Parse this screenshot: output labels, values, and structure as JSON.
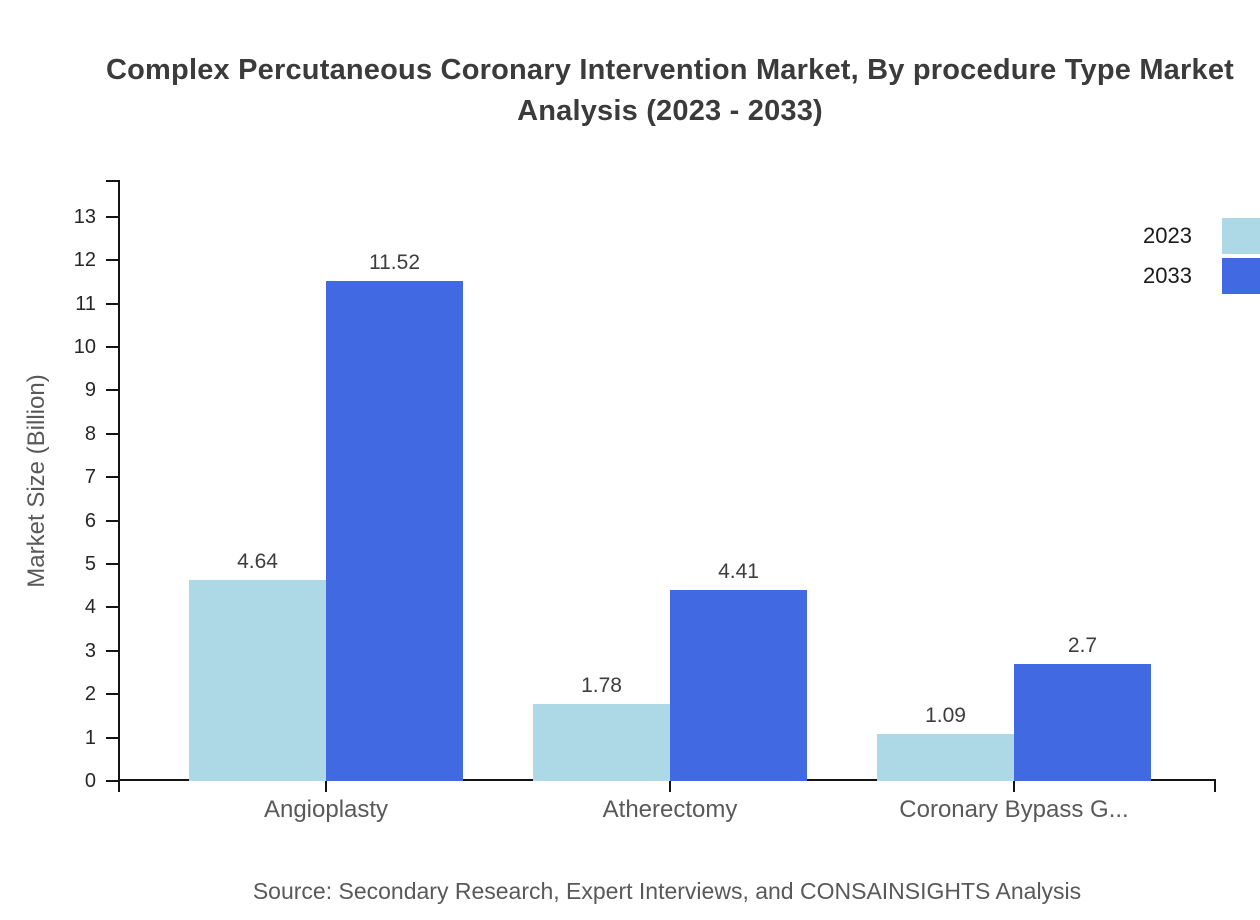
{
  "title": "Complex Percutaneous Coronary Intervention Market, By procedure Type Market Analysis (2023 - 2033)",
  "source_note": "Source: Secondary Research, Expert Interviews, and CONSAINSIGHTS Analysis",
  "colors": {
    "series_2023": "#ADD8E6",
    "series_2033": "#4169E1",
    "axis": "#141414",
    "title_text": "#3b3b3b",
    "muted_text": "#595959",
    "tick_text": "#262626",
    "background": "#ffffff"
  },
  "chart_data": {
    "type": "bar",
    "title": "Complex Percutaneous Coronary Intervention Market, By procedure Type Market Analysis (2023 - 2033)",
    "categories": [
      "Angioplasty",
      "Atherectomy",
      "Coronary Bypass G..."
    ],
    "series": [
      {
        "name": "2023",
        "color": "#ADD8E6",
        "values": [
          4.64,
          1.78,
          1.09
        ]
      },
      {
        "name": "2033",
        "color": "#4169E1",
        "values": [
          11.52,
          4.41,
          2.7
        ]
      }
    ],
    "data_labels": [
      [
        "4.64",
        "1.78",
        "1.09"
      ],
      [
        "11.52",
        "4.41",
        "2.7"
      ]
    ],
    "xlabel": "",
    "ylabel": "Market Size (Billion)",
    "ylim": [
      0,
      13
    ],
    "yticks": [
      0,
      1,
      2,
      3,
      4,
      5,
      6,
      7,
      8,
      9,
      10,
      11,
      12,
      13
    ],
    "grid": false,
    "legend_position": "top-right",
    "legend_entries": [
      "2023",
      "2033"
    ]
  }
}
